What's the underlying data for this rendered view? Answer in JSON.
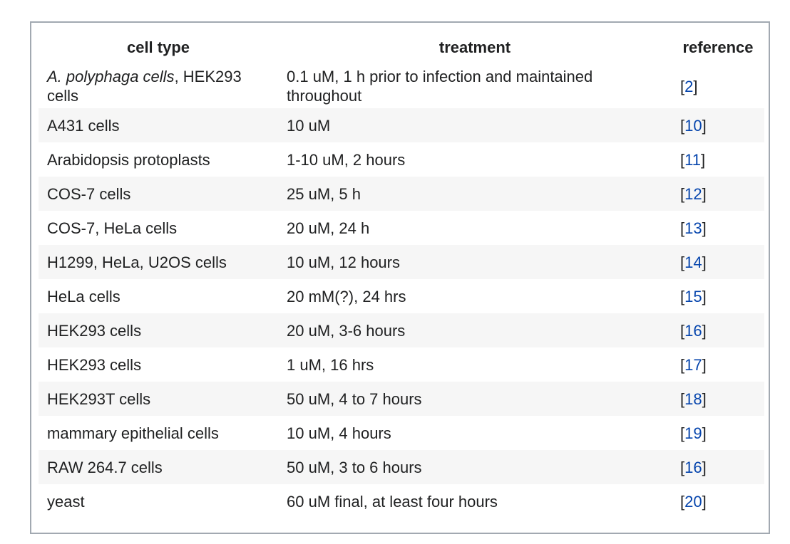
{
  "table": {
    "headers": {
      "cell_type": "cell type",
      "treatment": "treatment",
      "reference": "reference"
    },
    "first_row": {
      "cell_type_italic": "A. polyphaga cells",
      "cell_type_rest": ", HEK293 cells",
      "treatment": "0.1 uM, 1 h prior to infection and maintained throughout",
      "ref": "2"
    },
    "rows": [
      {
        "cell_type": "A431 cells",
        "treatment": "10 uM",
        "ref": "10"
      },
      {
        "cell_type": "Arabidopsis protoplasts",
        "treatment": "1-10 uM, 2 hours",
        "ref": "11"
      },
      {
        "cell_type": "COS-7 cells",
        "treatment": "25 uM, 5 h",
        "ref": "12"
      },
      {
        "cell_type": "COS-7, HeLa cells",
        "treatment": "20 uM, 24 h",
        "ref": "13"
      },
      {
        "cell_type": "H1299, HeLa, U2OS cells",
        "treatment": "10 uM, 12 hours",
        "ref": "14"
      },
      {
        "cell_type": "HeLa cells",
        "treatment": "20 mM(?), 24 hrs",
        "ref": "15"
      },
      {
        "cell_type": "HEK293 cells",
        "treatment": "20 uM, 3-6 hours",
        "ref": "16"
      },
      {
        "cell_type": "HEK293 cells",
        "treatment": "1 uM, 16 hrs",
        "ref": "17"
      },
      {
        "cell_type": "HEK293T cells",
        "treatment": "50 uM, 4 to 7 hours",
        "ref": "18"
      },
      {
        "cell_type": "mammary epithelial cells",
        "treatment": "10 uM, 4 hours",
        "ref": "19"
      },
      {
        "cell_type": "RAW 264.7 cells",
        "treatment": "50 uM, 3 to 6 hours",
        "ref": "16"
      },
      {
        "cell_type": "yeast",
        "treatment": "60 uM final, at least four hours",
        "ref": "20"
      }
    ]
  },
  "colors": {
    "link": "#0645ad",
    "border": "#a2a9b1",
    "row_shade": "#f6f6f6",
    "text": "#202122"
  }
}
